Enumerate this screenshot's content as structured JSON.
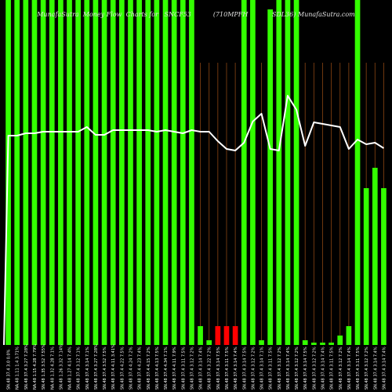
{
  "title": "MunafaSutra  Money Flow  Charts for   SNCF53           (710MPFH            SDL36) MunafaSutra.com",
  "colors": {
    "background": "#000000",
    "bar_up": "#33ff00",
    "bar_down": "#ff0000",
    "line": "#ffffff",
    "grid": "#8b4513"
  },
  "chart_data": {
    "type": "bar",
    "categories": [
      "SN.48 37.4 3.0 0.0%",
      "NA.48 1.11 1.4 3.71%",
      "SN.48 37.4 3.27 7.28%",
      "NA.48 1.15 4.28 7.79%",
      "SN.48 1.35 3.52 7.55%",
      "NA.48 1.32 4.28 7.1%",
      "SN.48 1.26 3.32 7.14%",
      "NA.48 1.27 4.14 7.4%",
      "SN.48 37.4 3.12 7.1%",
      "SN.48 37.4 3.14 7.1%",
      "SN.48 37.4 3.27 7.28%",
      "SN.48 37.4 3.52 7.5%",
      "SN.48 37.4 4.11 3.41%",
      "SN.48 37.4 4.22 7.5%",
      "SN.48 37.4 4.24 7.2%",
      "SN.48 37.4 4.23 7.4%",
      "SN.48 37.4 4.15 7.2%",
      "SN.48 37.4 4.13 7.5%",
      "SN.48 37.4 4.34 7.1%",
      "SN.48 37.4 4.11 7.9%",
      "SN.48 37.4 3.11 7.5%",
      "SN.48 37.4 3.12 7.2%",
      "SN.48 37.4 3.14 7.4%",
      "SN.48 37.4 3.22 7.2%",
      "SN.48 37.4 3.14 7.5%",
      "SN.48 37.4 3.11 7.5%",
      "SN.48 37.4 3.14 7.4%",
      "SN.48 37.4 3.14 7.5%",
      "SN.48 37.4 3.12 7.2%",
      "SN.48 37.4 3.14 7.1%",
      "SN.48 37.4 3.11 7.5%",
      "SN.48 37.4 3.12 7.2%",
      "SN.48 37.4 3.14 7.4%",
      "SN.48 37.4 3.12 7.2%",
      "SN.48 37.4 3.14 7.5%",
      "SN.48 37.4 3.12 7.2%",
      "SN.48 37.4 3.14 7.4%",
      "SN.48 37.4 3.11 7.5%",
      "SN.48 37.4 3.12 7.2%",
      "SN.48 37.4 3.14 7.4%",
      "SN.48 37.4 3.11 7.5%",
      "SN.48 37.4 3.12 7.2%",
      "SN.48 37.4 3.14 7.4%",
      "SN.48 37.4 3.14 7.4%"
    ],
    "series": [
      {
        "type": "bar",
        "values": [
          440,
          440,
          440,
          440,
          440,
          440,
          440,
          440,
          440,
          440,
          440,
          440,
          440,
          440,
          440,
          440,
          440,
          440,
          440,
          440,
          440,
          440,
          24,
          6,
          24,
          24,
          24,
          440,
          440,
          6,
          428,
          440,
          440,
          440,
          6,
          3,
          3,
          3,
          12,
          24,
          440,
          200,
          226,
          200
        ],
        "direction": [
          "up",
          "up",
          "up",
          "up",
          "up",
          "up",
          "up",
          "up",
          "up",
          "up",
          "up",
          "up",
          "up",
          "up",
          "up",
          "up",
          "up",
          "up",
          "up",
          "up",
          "up",
          "up",
          "up",
          "up",
          "down",
          "down",
          "down",
          "up",
          "up",
          "up",
          "up",
          "up",
          "up",
          "up",
          "up",
          "up",
          "up",
          "up",
          "up",
          "up",
          "up",
          "up",
          "up",
          "up"
        ]
      },
      {
        "type": "line",
        "values": [
          267,
          267,
          270,
          270,
          272,
          272,
          272,
          272,
          272,
          278,
          268,
          268,
          274,
          274,
          274,
          274,
          274,
          272,
          274,
          272,
          270,
          274,
          272,
          272,
          260,
          250,
          248,
          258,
          285,
          295,
          250,
          248,
          318,
          300,
          254,
          284,
          282,
          280,
          278,
          250,
          262,
          256,
          258,
          251
        ]
      }
    ],
    "ylim": [
      0,
      440
    ],
    "vertical_grid_from_index": 22,
    "grid": true
  }
}
